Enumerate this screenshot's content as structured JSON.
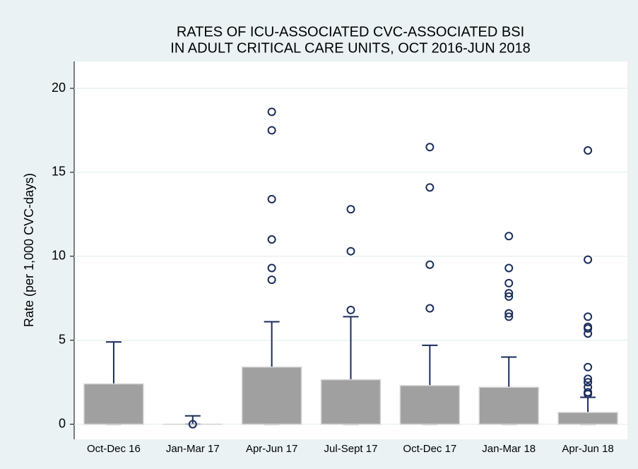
{
  "chart_data": {
    "type": "box",
    "title": [
      "RATES OF ICU-ASSOCIATED CVC-ASSOCIATED BSI",
      "IN ADULT CRITICAL CARE UNITS, OCT 2016-JUN 2018"
    ],
    "ylabel": "Rate (per 1,000 CVC-days)",
    "categories": [
      "Oct-Dec 16",
      "Jan-Mar 17",
      "Apr-Jun 17",
      "Jul-Sept 17",
      "Oct-Dec 17",
      "Jan-Mar 18",
      "Apr-Jun 18"
    ],
    "series": [
      {
        "color": "#a0a0a0",
        "whisker_color": "#1a2d5a",
        "boxes": [
          {
            "whisker_low": 0,
            "q1": 0,
            "median": 0,
            "q3": 2.4,
            "whisker_high": 4.9,
            "outliers": []
          },
          {
            "whisker_low": 0,
            "q1": 0,
            "median": 0,
            "q3": 0,
            "whisker_high": 0.5,
            "outliers": [
              0
            ]
          },
          {
            "whisker_low": 0,
            "q1": 0,
            "median": 0,
            "q3": 3.4,
            "whisker_high": 6.1,
            "outliers": [
              18.6,
              17.5,
              13.4,
              11.0,
              9.3,
              8.6
            ]
          },
          {
            "whisker_low": 0,
            "q1": 0,
            "median": 0,
            "q3": 2.65,
            "whisker_high": 6.4,
            "outliers": [
              12.8,
              10.3,
              6.8
            ]
          },
          {
            "whisker_low": 0,
            "q1": 0,
            "median": 0,
            "q3": 2.3,
            "whisker_high": 4.7,
            "outliers": [
              16.5,
              14.1,
              9.5,
              6.9
            ]
          },
          {
            "whisker_low": 0,
            "q1": 0,
            "median": 0,
            "q3": 2.2,
            "whisker_high": 4.0,
            "outliers": [
              11.2,
              9.3,
              8.4,
              7.8,
              7.6,
              6.6,
              6.4
            ]
          },
          {
            "whisker_low": 0,
            "q1": 0,
            "median": 0,
            "q3": 0.7,
            "whisker_high": 1.6,
            "outliers": [
              16.3,
              9.8,
              6.4,
              5.8,
              5.7,
              5.4,
              3.4,
              2.7,
              2.5,
              2.2,
              1.9,
              1.8
            ]
          }
        ]
      }
    ],
    "ylim": [
      -0.9,
      21.6
    ],
    "yticks": [
      0,
      5,
      10,
      15,
      20
    ],
    "grid": true
  }
}
